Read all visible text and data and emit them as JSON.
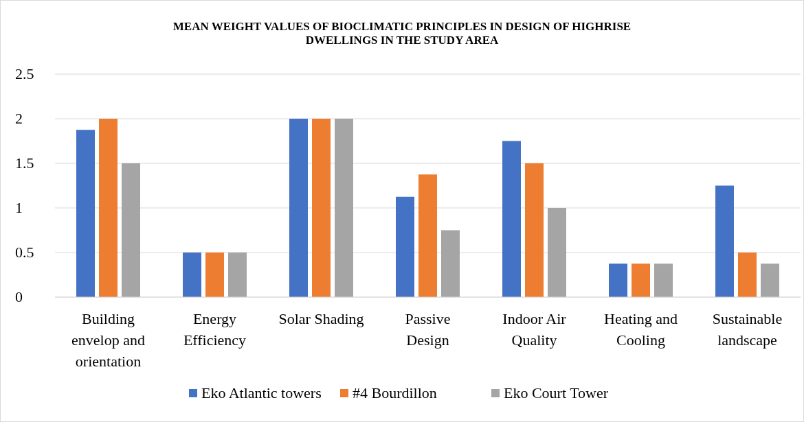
{
  "chart_data": {
    "type": "bar",
    "title": "MEAN WEIGHT VALUES OF BIOCLIMATIC PRINCIPLES IN DESIGN OF HIGHRISE DWELLINGS IN THE STUDY AREA",
    "categories": [
      "Building envelop and orientation",
      "Energy Efficiency",
      "Solar Shading",
      "Passive Design",
      "Indoor Air Quality",
      "Heating and Cooling",
      "Sustainable landscape"
    ],
    "series": [
      {
        "name": "Eko Atlantic towers",
        "color": "#4472c4",
        "values": [
          1.875,
          0.5,
          2,
          1.125,
          1.75,
          0.375,
          1.25
        ]
      },
      {
        "name": "#4 Bourdillon",
        "color": "#ed7d31",
        "values": [
          2,
          0.5,
          2,
          1.375,
          1.5,
          0.375,
          0.5
        ]
      },
      {
        "name": "Eko Court Tower",
        "color": "#a5a5a5",
        "values": [
          1.5,
          0.5,
          2,
          0.75,
          1,
          0.375,
          0.375
        ]
      }
    ],
    "ylim": [
      0,
      2.5
    ],
    "yticks": [
      0,
      0.5,
      1,
      1.5,
      2,
      2.5
    ],
    "grid": "y",
    "legend": "bottom"
  }
}
